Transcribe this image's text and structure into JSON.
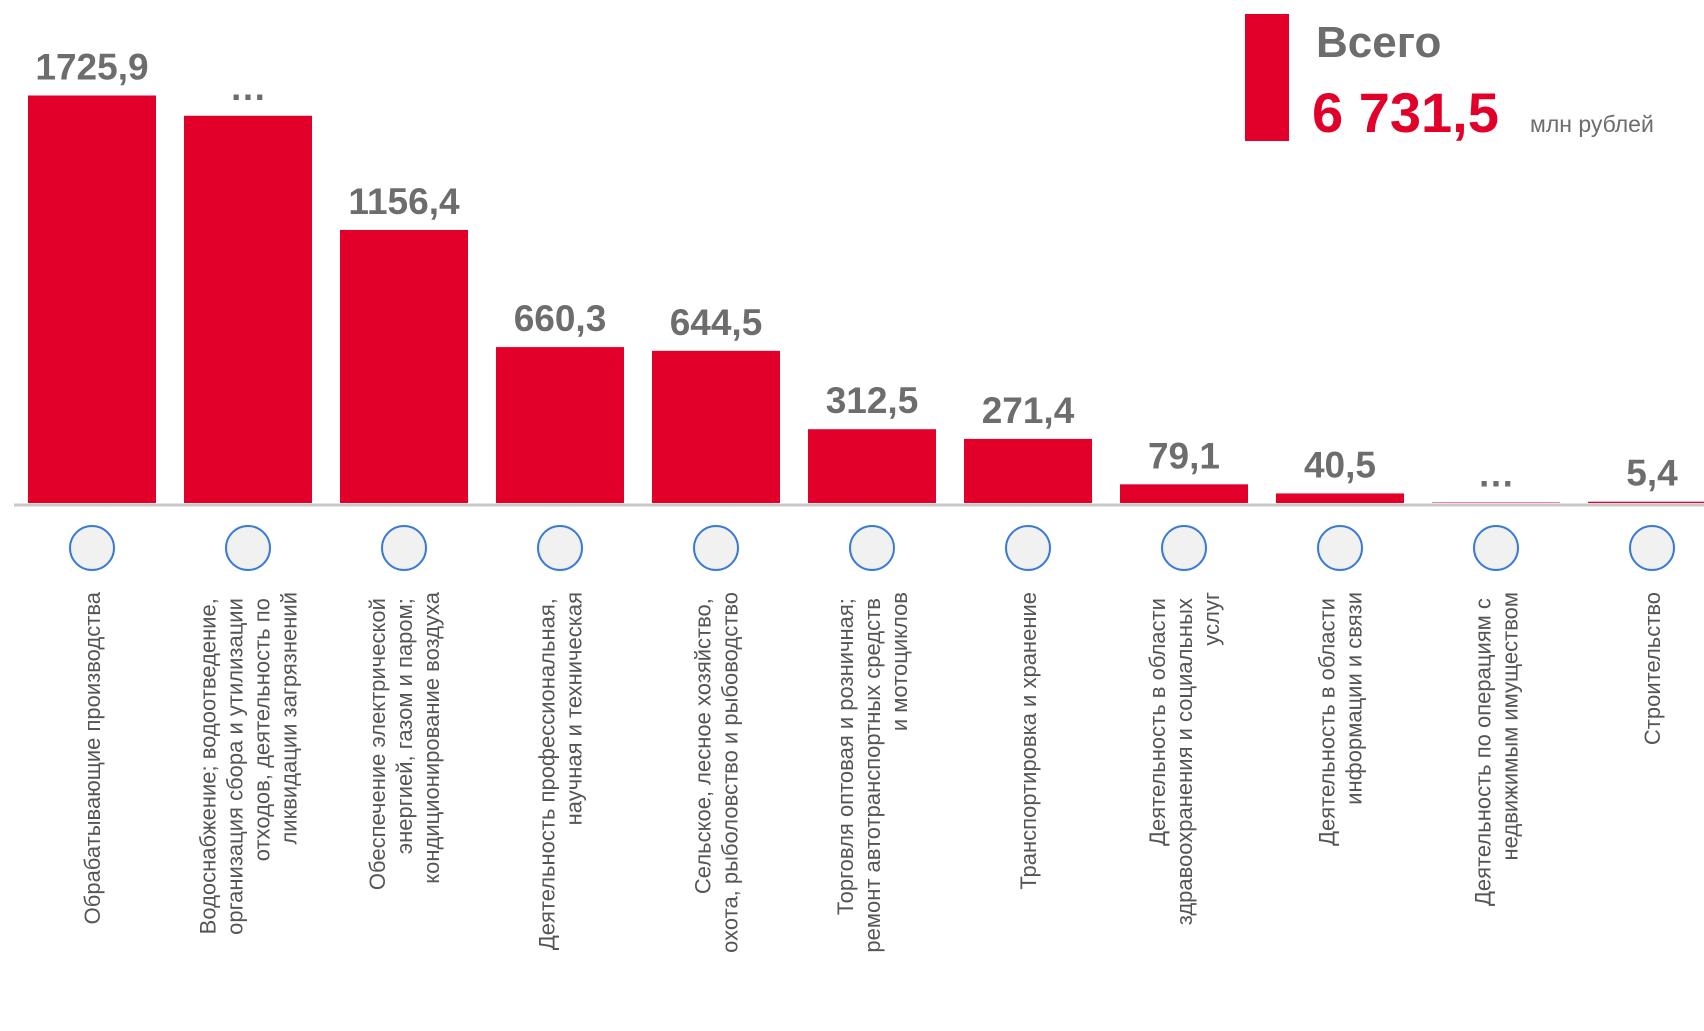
{
  "chart_data": {
    "type": "bar",
    "categories": [
      "Обрабатывающие производства",
      "Водоснабжение; водоотведение, организация сбора и утилизации отходов, деятельность по ликвидации загрязнений",
      "Обеспечение электрической энергией, газом и паром; кондиционирование воздуха",
      "Деятельность профессиональная, научная и техническая",
      "Сельское, лесное хозяйство, охота, рыболовство и рыбоводство",
      "Торговля оптовая и розничная; ремонт автотранспортных средств и мотоциклов",
      "Транспортировка и хранение",
      "Деятельность в области здравоохранения и социальных услуг",
      "Деятельность в области информации и связи",
      "Деятельность по операциям с недвижимым имуществом",
      "Строительство"
    ],
    "values": [
      1725.9,
      1640,
      1156.4,
      660.3,
      644.5,
      312.5,
      271.4,
      79.1,
      40.5,
      2,
      5.4
    ],
    "value_labels": [
      "1725,9",
      "…",
      "1156,4",
      "660,3",
      "644,5",
      "312,5",
      "271,4",
      "79,1",
      "40,5",
      "…",
      "5,4"
    ],
    "color": "#e2002b",
    "ylim": [
      0,
      1800
    ],
    "total": {
      "label": "Всего",
      "value": "6 731,5",
      "unit": "млн рублей"
    }
  }
}
